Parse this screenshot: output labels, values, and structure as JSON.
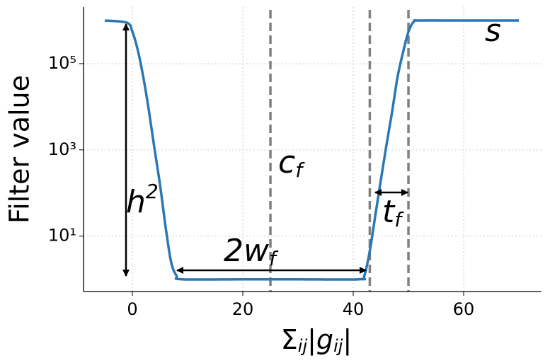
{
  "chart_data": {
    "type": "line",
    "ylabel": "Filter value",
    "xlabel": [
      {
        "text": "Σ"
      },
      {
        "text": "ij",
        "sub": true
      },
      {
        "text": "|g"
      },
      {
        "text": "ij",
        "sub": true
      },
      {
        "text": "|"
      }
    ],
    "x": [
      -5,
      -1,
      0,
      1,
      2,
      3,
      4,
      5,
      6,
      7,
      8,
      9,
      20,
      30,
      41,
      42,
      43,
      44,
      45,
      46,
      47,
      48,
      49,
      50,
      51,
      52,
      60,
      70
    ],
    "values": [
      1000000,
      891000,
      550000,
      200000,
      46800,
      7940,
      1070,
      158,
      17,
      2.57,
      1.2,
      1,
      1,
      1,
      1,
      1.2,
      4.57,
      30.2,
      200,
      1260,
      7080,
      46800,
      178000,
      550000,
      955000,
      1000000,
      1000000,
      1000000
    ],
    "color": "#2a77b4",
    "xlim": [
      -8.85,
      74.1
    ],
    "xticks": [
      0,
      20,
      40,
      60
    ],
    "ylim": [
      0.52,
      2050000
    ],
    "ylog": true,
    "yticks": [
      {
        "value": 10,
        "label": "10¹"
      },
      {
        "value": 1000,
        "label": "10³"
      },
      {
        "value": 100000,
        "label": "10⁵"
      }
    ],
    "grid": true,
    "vlines": [
      25,
      43,
      50
    ],
    "vline_color": "#808080",
    "annotations": [
      {
        "base": "h",
        "sup": "2"
      },
      {
        "base": "2w",
        "sub": "f"
      },
      {
        "base": "c",
        "sub": "f"
      },
      {
        "base": "t",
        "sub": "f"
      },
      {
        "base": "s"
      }
    ]
  }
}
